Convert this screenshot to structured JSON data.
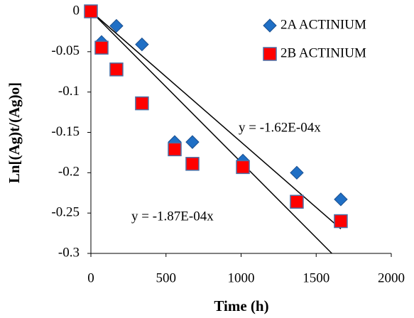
{
  "chart_data": {
    "type": "scatter",
    "x_label": "Time (h)",
    "y_label": "Ln[(Ag)t/(Ag)o]",
    "xlim": [
      0,
      2000
    ],
    "ylim": [
      -0.3,
      0
    ],
    "xticks": [
      0,
      500,
      1000,
      1500,
      2000
    ],
    "yticks": [
      0,
      -0.05,
      -0.1,
      -0.15,
      -0.2,
      -0.25,
      -0.3
    ],
    "grid": false,
    "legend": "upper right",
    "series": [
      {
        "name": "2A ACTINIUM",
        "color": "#1f6fc5",
        "marker": "diamond",
        "x": [
          0,
          71,
          170,
          340,
          558,
          676,
          1012,
          1371,
          1664
        ],
        "values": [
          0,
          -0.038,
          -0.018,
          -0.041,
          -0.162,
          -0.162,
          -0.185,
          -0.2,
          -0.233
        ]
      },
      {
        "name": "2B ACTINIUM",
        "color": "#ff0000",
        "marker": "square",
        "x": [
          0,
          71,
          170,
          340,
          558,
          676,
          1012,
          1371,
          1664
        ],
        "values": [
          0,
          -0.045,
          -0.072,
          -0.114,
          -0.171,
          -0.189,
          -0.193,
          -0.236,
          -0.26
        ]
      }
    ],
    "trendlines": [
      {
        "label": "y = -1.62E-04x",
        "slope": -0.000162
      },
      {
        "label": "y = -1.87E-04x",
        "slope": -0.000187
      }
    ]
  }
}
